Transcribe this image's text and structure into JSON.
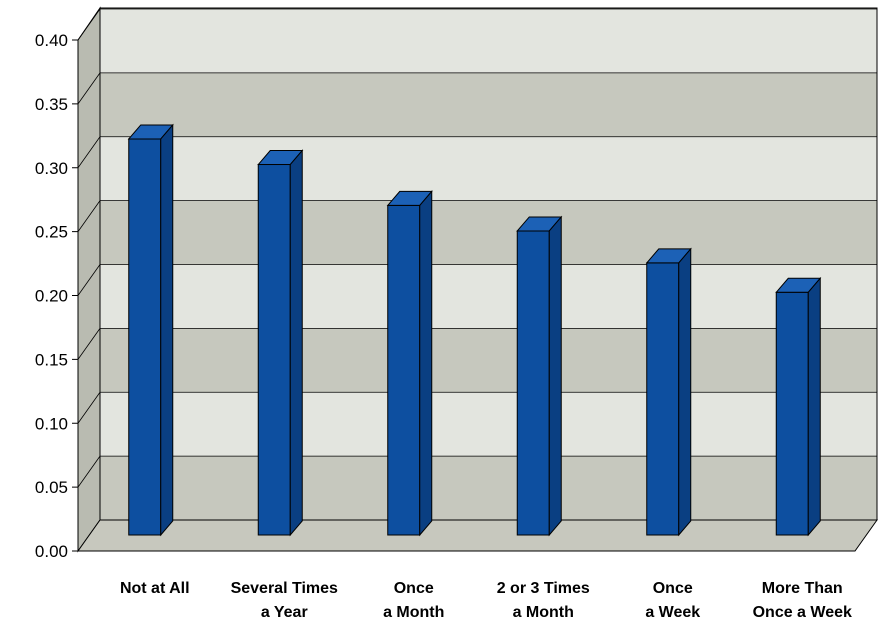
{
  "chart_data": {
    "type": "bar",
    "title": "",
    "xlabel": "",
    "ylabel": "",
    "categories": [
      [
        "Not at All"
      ],
      [
        "Several Times",
        "a Year"
      ],
      [
        "Once",
        "a Month"
      ],
      [
        "2 or 3 Times",
        "a Month"
      ],
      [
        "Once",
        "a Week"
      ],
      [
        "More Than",
        "Once a Week"
      ]
    ],
    "values": [
      0.31,
      0.29,
      0.258,
      0.238,
      0.213,
      0.19
    ],
    "ylim": [
      0,
      0.4
    ],
    "yticks": [
      "0.00",
      "0.05",
      "0.10",
      "0.15",
      "0.20",
      "0.25",
      "0.30",
      "0.35",
      "0.40"
    ],
    "grid": true,
    "legend": "none",
    "three_d": true,
    "colors": {
      "bar_front": "#0d4fa0",
      "bar_top": "#1c61b6",
      "bar_side": "#0a3f82",
      "band_dark": "#c6c8be",
      "band_light": "#e3e5df",
      "side_wall": "#b9bbb1",
      "floor": "#c7c8be"
    }
  }
}
